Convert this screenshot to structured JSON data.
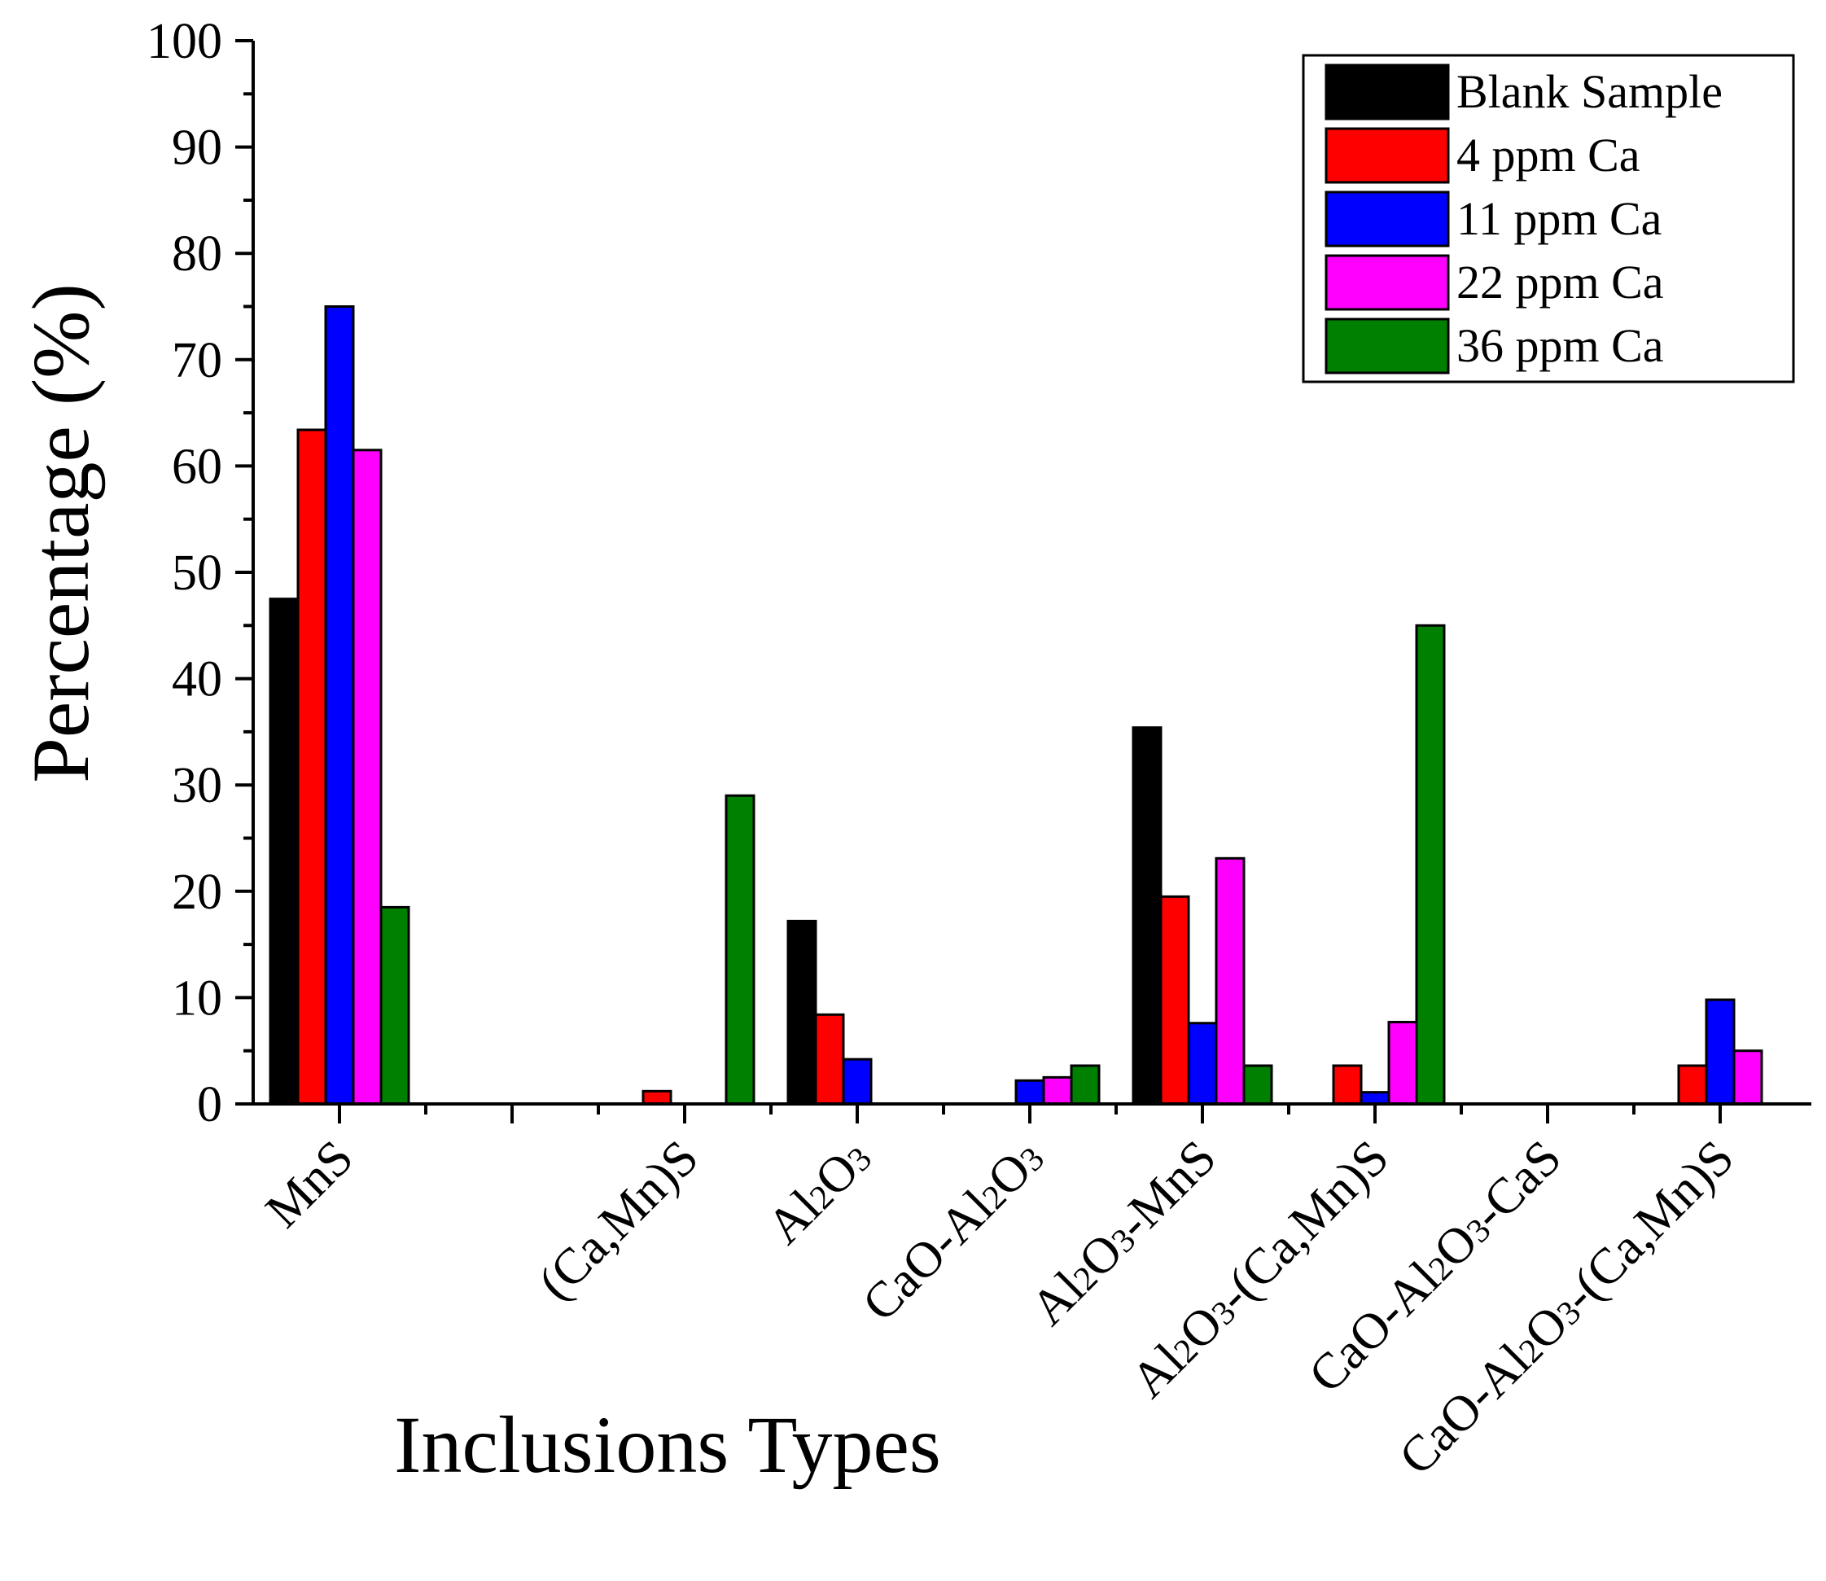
{
  "chart_data": {
    "type": "bar",
    "title": "",
    "xlabel": "Inclusions Types",
    "ylabel": "Percentage (%)",
    "ylim": [
      0,
      100
    ],
    "yticks": [
      0,
      10,
      20,
      30,
      40,
      50,
      60,
      70,
      80,
      90,
      100
    ],
    "grid": false,
    "legend_position": "top-right",
    "categories": [
      "MnS",
      "",
      "(Ca,Mn)S",
      "Al2O3",
      "CaO-Al2O3",
      "Al2O3-MnS",
      "Al2O3-(Ca,Mn)S",
      "CaO-Al2O3-CaS",
      "CaO-Al2O3-(Ca,Mn)S"
    ],
    "series": [
      {
        "name": "Blank Sample",
        "color": "#000000",
        "values": [
          47.5,
          0,
          0,
          17.2,
          0,
          35.4,
          0,
          0,
          0
        ]
      },
      {
        "name": "4 ppm Ca",
        "color": "#ff0000",
        "values": [
          63.4,
          0,
          1.2,
          8.4,
          0,
          19.5,
          3.6,
          0,
          3.6
        ]
      },
      {
        "name": "11 ppm Ca",
        "color": "#0000ff",
        "values": [
          75.0,
          0,
          0,
          4.2,
          2.2,
          7.6,
          1.1,
          0,
          9.8
        ]
      },
      {
        "name": "22 ppm Ca",
        "color": "#ff00ff",
        "values": [
          61.5,
          0,
          0,
          0,
          2.5,
          23.1,
          7.7,
          0,
          5.0
        ]
      },
      {
        "name": "36 ppm Ca",
        "color": "#008000",
        "values": [
          18.5,
          0,
          29.0,
          0,
          3.6,
          3.6,
          45.0,
          0,
          0
        ]
      }
    ]
  }
}
